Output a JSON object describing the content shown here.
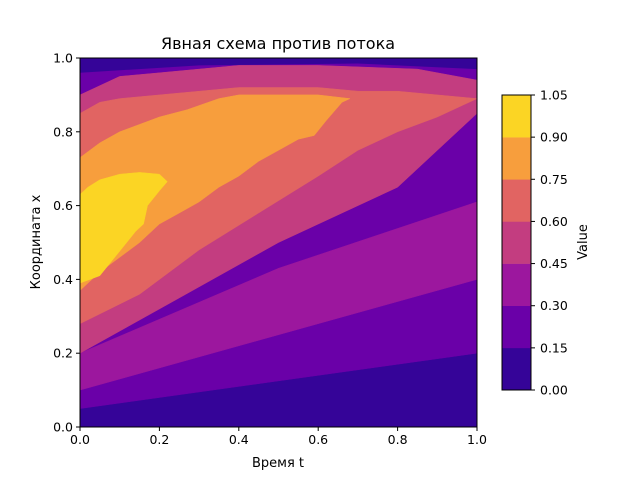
{
  "chart_data": {
    "type": "contour",
    "title": "Явная схема против потока",
    "xlabel": "Время t",
    "ylabel": "Координата x",
    "colorbar_label": "Value",
    "xlim": [
      0.0,
      1.0
    ],
    "ylim": [
      0.0,
      1.0
    ],
    "xticks": [
      "0.0",
      "0.2",
      "0.4",
      "0.6",
      "0.8",
      "1.0"
    ],
    "yticks": [
      "0.0",
      "0.2",
      "0.4",
      "0.6",
      "0.8",
      "1.0"
    ],
    "colormap": "plasma",
    "levels": [
      0.0,
      0.15,
      0.3,
      0.45,
      0.6,
      0.75,
      0.9,
      1.05
    ],
    "level_labels": [
      "0.00",
      "0.15",
      "0.30",
      "0.45",
      "0.60",
      "0.75",
      "0.90",
      "1.05"
    ],
    "level_colors": [
      "#350498",
      "#6a00a8",
      "#9c179e",
      "#c33d80",
      "#e16462",
      "#f79e3d",
      "#fbd524"
    ],
    "contour_regions": [
      {
        "level": 0,
        "points": [
          [
            0,
            0
          ],
          [
            1,
            0
          ],
          [
            1,
            0.2
          ],
          [
            0,
            0.05
          ]
        ]
      },
      {
        "level": 1,
        "points": [
          [
            0,
            0.05
          ],
          [
            1,
            0.2
          ],
          [
            1,
            0.4
          ],
          [
            0,
            0.1
          ]
        ]
      },
      {
        "level": 2,
        "points": [
          [
            0,
            0.1
          ],
          [
            1,
            0.4
          ],
          [
            1,
            0.61
          ],
          [
            0.5,
            0.43
          ],
          [
            0,
            0.2
          ]
        ]
      },
      {
        "level": 3,
        "points": [
          [
            0,
            0.2
          ],
          [
            0.25,
            0.35
          ],
          [
            0.5,
            0.5
          ],
          [
            0.8,
            0.65
          ],
          [
            1,
            0.85
          ],
          [
            1,
            0.94
          ],
          [
            0.85,
            0.97
          ],
          [
            0.6,
            0.98
          ],
          [
            0.4,
            0.98
          ],
          [
            0.2,
            0.96
          ],
          [
            0.1,
            0.95
          ],
          [
            0,
            0.9
          ]
        ]
      },
      {
        "level": 4,
        "points": [
          [
            0,
            0.28
          ],
          [
            0.15,
            0.36
          ],
          [
            0.3,
            0.48
          ],
          [
            0.45,
            0.58
          ],
          [
            0.6,
            0.68
          ],
          [
            0.7,
            0.75
          ],
          [
            0.8,
            0.8
          ],
          [
            0.9,
            0.84
          ],
          [
            1,
            0.89
          ],
          [
            0.9,
            0.9
          ],
          [
            0.8,
            0.91
          ],
          [
            0.7,
            0.91
          ],
          [
            0.6,
            0.92
          ],
          [
            0.5,
            0.92
          ],
          [
            0.4,
            0.92
          ],
          [
            0.3,
            0.91
          ],
          [
            0.2,
            0.9
          ],
          [
            0.1,
            0.89
          ],
          [
            0.05,
            0.88
          ],
          [
            0,
            0.85
          ]
        ]
      },
      {
        "level": 5,
        "points": [
          [
            0,
            0.37
          ],
          [
            0.05,
            0.42
          ],
          [
            0.1,
            0.46
          ],
          [
            0.15,
            0.5
          ],
          [
            0.2,
            0.55
          ],
          [
            0.25,
            0.58
          ],
          [
            0.3,
            0.61
          ],
          [
            0.35,
            0.65
          ],
          [
            0.4,
            0.68
          ],
          [
            0.45,
            0.72
          ],
          [
            0.5,
            0.75
          ],
          [
            0.55,
            0.78
          ],
          [
            0.59,
            0.79
          ],
          [
            0.62,
            0.83
          ],
          [
            0.66,
            0.88
          ],
          [
            0.68,
            0.89
          ],
          [
            0.6,
            0.9
          ],
          [
            0.5,
            0.9
          ],
          [
            0.4,
            0.9
          ],
          [
            0.35,
            0.89
          ],
          [
            0.27,
            0.86
          ],
          [
            0.2,
            0.84
          ],
          [
            0.15,
            0.82
          ],
          [
            0.1,
            0.8
          ],
          [
            0.05,
            0.77
          ],
          [
            0,
            0.73
          ]
        ]
      },
      {
        "level": 6,
        "points": [
          [
            0,
            0.39
          ],
          [
            0.05,
            0.41
          ],
          [
            0.08,
            0.45
          ],
          [
            0.11,
            0.49
          ],
          [
            0.14,
            0.53
          ],
          [
            0.16,
            0.55
          ],
          [
            0.17,
            0.6
          ],
          [
            0.2,
            0.64
          ],
          [
            0.22,
            0.665
          ],
          [
            0.2,
            0.685
          ],
          [
            0.15,
            0.69
          ],
          [
            0.1,
            0.685
          ],
          [
            0.05,
            0.67
          ],
          [
            0.02,
            0.65
          ],
          [
            0,
            0.63
          ]
        ]
      }
    ]
  }
}
